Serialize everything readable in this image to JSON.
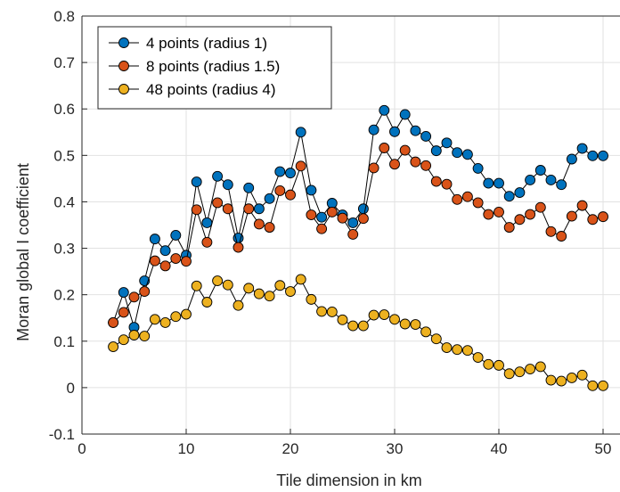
{
  "chart_data": {
    "type": "line",
    "xlabel": "Tile dimension in km",
    "ylabel": "Moran global I coefficient",
    "xlim": [
      0,
      50
    ],
    "ylim": [
      -0.1,
      0.8
    ],
    "x_ticks": [
      "0",
      "10",
      "20",
      "30",
      "40",
      "50"
    ],
    "y_ticks": [
      "-0.1",
      "0",
      "0.1",
      "0.2",
      "0.3",
      "0.4",
      "0.5",
      "0.6",
      "0.7",
      "0.8"
    ],
    "grid": true,
    "legend_position": "top-left",
    "x": [
      3,
      4,
      5,
      6,
      7,
      8,
      9,
      10,
      11,
      12,
      13,
      14,
      15,
      16,
      17,
      18,
      19,
      20,
      21,
      22,
      23,
      24,
      25,
      26,
      27,
      28,
      29,
      30,
      31,
      32,
      33,
      34,
      35,
      36,
      37,
      38,
      39,
      40,
      41,
      42,
      43,
      44,
      45,
      46,
      47,
      48,
      49,
      50
    ],
    "series": [
      {
        "name": "4 points (radius 1)",
        "color": "#0072BD",
        "values": [
          0.14,
          0.205,
          0.13,
          0.23,
          0.32,
          0.295,
          0.328,
          0.285,
          0.443,
          0.355,
          0.455,
          0.437,
          0.322,
          0.43,
          0.385,
          0.407,
          0.465,
          0.462,
          0.55,
          0.425,
          0.367,
          0.397,
          0.372,
          0.355,
          0.385,
          0.555,
          0.597,
          0.551,
          0.588,
          0.553,
          0.541,
          0.51,
          0.527,
          0.506,
          0.502,
          0.472,
          0.44,
          0.44,
          0.412,
          0.42,
          0.447,
          0.468,
          0.447,
          0.437,
          0.492,
          0.515,
          0.499,
          0.499
        ]
      },
      {
        "name": "8 points (radius 1.5)",
        "color": "#D95319",
        "values": [
          0.14,
          0.162,
          0.195,
          0.207,
          0.273,
          0.262,
          0.278,
          0.272,
          0.383,
          0.313,
          0.398,
          0.385,
          0.302,
          0.385,
          0.352,
          0.345,
          0.424,
          0.415,
          0.477,
          0.372,
          0.342,
          0.378,
          0.365,
          0.33,
          0.364,
          0.473,
          0.516,
          0.481,
          0.511,
          0.486,
          0.478,
          0.444,
          0.438,
          0.405,
          0.411,
          0.398,
          0.373,
          0.378,
          0.345,
          0.362,
          0.373,
          0.388,
          0.336,
          0.326,
          0.369,
          0.392,
          0.362,
          0.368
        ]
      },
      {
        "name": "48 points (radius 4)",
        "color": "#EDB120",
        "values": [
          0.088,
          0.103,
          0.113,
          0.111,
          0.147,
          0.14,
          0.153,
          0.158,
          0.219,
          0.184,
          0.23,
          0.221,
          0.177,
          0.214,
          0.202,
          0.197,
          0.22,
          0.207,
          0.233,
          0.19,
          0.164,
          0.163,
          0.146,
          0.133,
          0.133,
          0.156,
          0.157,
          0.147,
          0.137,
          0.136,
          0.12,
          0.105,
          0.086,
          0.082,
          0.08,
          0.065,
          0.05,
          0.048,
          0.03,
          0.034,
          0.04,
          0.045,
          0.016,
          0.014,
          0.021,
          0.027,
          0.004,
          0.004
        ]
      }
    ]
  }
}
